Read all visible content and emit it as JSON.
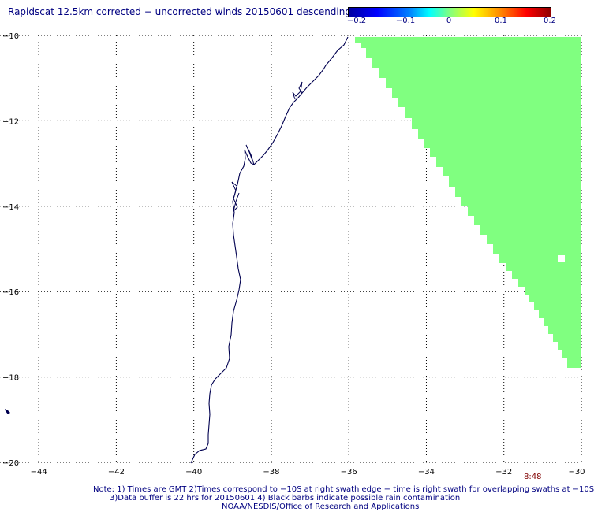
{
  "title": "Rapidscat 12.5km corrected − uncorrected winds 20150601 descending",
  "colorbar": {
    "ticks": [
      "−0.2",
      "−0.1",
      "0",
      "0.1",
      "0.2"
    ],
    "colors": [
      "#0000a0",
      "#0000ff",
      "#00ffff",
      "#80ff80",
      "#ffff00",
      "#ff0000",
      "#900000"
    ]
  },
  "map": {
    "lon_ticks": [
      "−44",
      "−42",
      "−40",
      "−38",
      "−36",
      "−34",
      "−32",
      "−30"
    ],
    "lat_ticks": [
      "−10",
      "−12",
      "−14",
      "−16",
      "−18",
      "−20"
    ],
    "lon_range": [
      -45,
      -30
    ],
    "lat_range": [
      -20,
      -10
    ],
    "grid": "dotted",
    "swath_color": "#80ff80",
    "coast_color": "#000050"
  },
  "time_label": "8:48",
  "notes": {
    "line1": "Note: 1) Times are GMT 2)Times correspond to −10S at right swath edge − time is right swath for overlapping swaths at −10S",
    "line2": "3)Data buffer is 22 hrs for 20150601 4) Black barbs indicate possible rain contamination",
    "line3": "NOAA/NESDIS/Office of Research and Applications"
  }
}
